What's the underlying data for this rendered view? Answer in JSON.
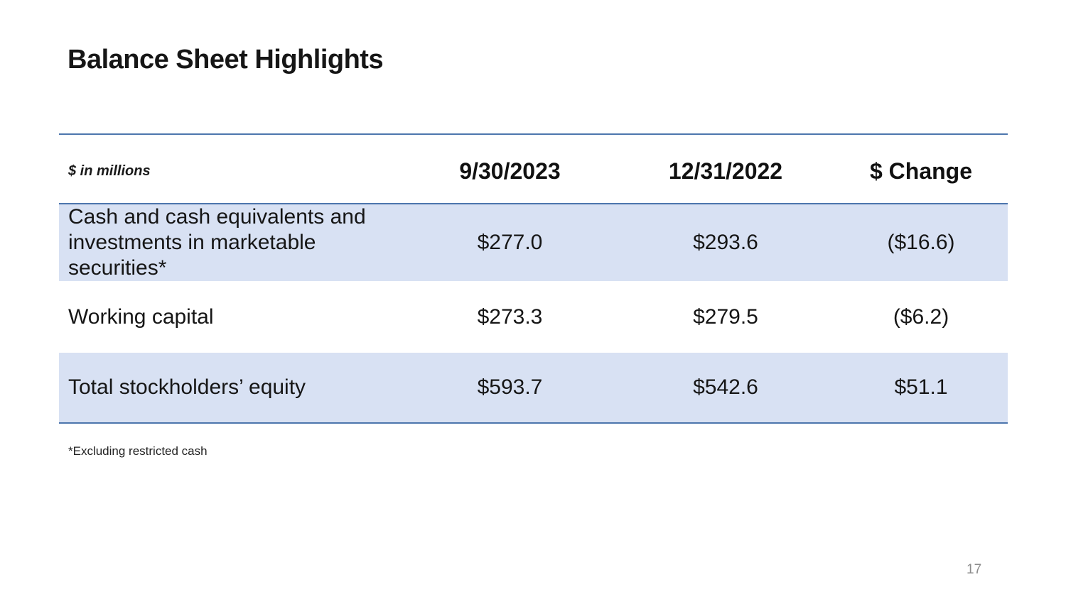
{
  "slide": {
    "title": "Balance Sheet Highlights",
    "footnote": "*Excluding restricted cash",
    "page_number": "17"
  },
  "table": {
    "unit_label": "$ in millions",
    "column_headers": [
      "9/30/2023",
      "12/31/2022",
      "$ Change"
    ],
    "rows": [
      {
        "label_line1": "Cash and cash equivalents and",
        "label_line2": "investments in marketable securities*",
        "values": [
          "$277.0",
          "$293.6",
          "($16.6)"
        ]
      },
      {
        "label_line1": "Working capital",
        "label_line2": "",
        "values": [
          "$273.3",
          "$279.5",
          "($6.2)"
        ]
      },
      {
        "label_line1": "Total stockholders’ equity",
        "label_line2": "",
        "values": [
          "$593.7",
          "$542.6",
          "$51.1"
        ]
      }
    ]
  },
  "colors": {
    "row_fill": "#d8e1f3",
    "table_border": "#4d76ad",
    "text": "#1b1b1b",
    "page_number": "#8c8c8c"
  }
}
